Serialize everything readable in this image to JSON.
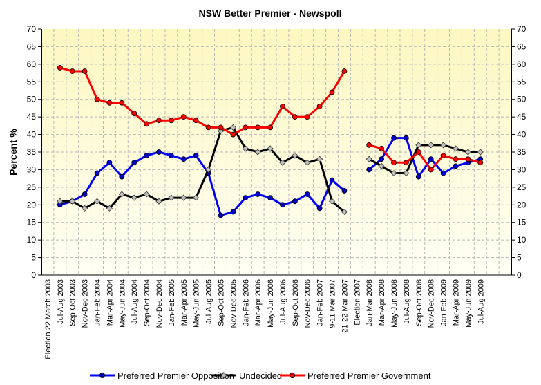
{
  "chart_data": {
    "type": "line",
    "title": "NSW Better Premier - Newspoll",
    "ylabel": "Percent %",
    "xlabel": "",
    "ylim": [
      0,
      70
    ],
    "yticks": [
      "0",
      "5",
      "10",
      "15",
      "20",
      "25",
      "30",
      "35",
      "40",
      "45",
      "50",
      "55",
      "60",
      "65",
      "70"
    ],
    "grid": true,
    "legend_position": "bottom",
    "categories": [
      "Election 22 March 2003",
      "Jul-Aug 2003",
      "Sep-Oct 2003",
      "Nov-Dec 2003",
      "Jan-Feb 2004",
      "Mar-Apr 2004",
      "May-Jun 2004",
      "Jul-Aug 2004",
      "Sep-Oct 2004",
      "Nov-Dec 2004",
      "Jan-Feb 2005",
      "Mar-Apr 2005",
      "May-Jun 2005",
      "Jul-Aug 2005",
      "Sep-Oct 2005",
      "Nov-Dec 2005",
      "Jan-Feb 2006",
      "Mar-Apr 2006",
      "May-Jun 2006",
      "Jul-Aug 2006",
      "Sep-Oct 2006",
      "Nov-Dec 2006",
      "Jan-Feb 2007",
      "9-11 Mar 2007",
      "21-22 Mar 2007",
      "Election 2007",
      "Jan-Mar 2008",
      "Mar-Apr 2008",
      "May-Jun 2008",
      "Jul-Aug 2008",
      "Sep-Oct 2008",
      "Nov-Dec 2008",
      "Jan-Feb 2009",
      "Mar-Apr 2009",
      "May-Jun 2009",
      "Jul-Aug 2009",
      "",
      ""
    ],
    "series": [
      {
        "name": "Preferred Premier Opposition",
        "color": "#0000ff",
        "marker": "#0000cc",
        "values": [
          null,
          20,
          21,
          23,
          29,
          32,
          28,
          32,
          34,
          35,
          34,
          33,
          34,
          29,
          17,
          18,
          22,
          23,
          22,
          20,
          21,
          23,
          19,
          27,
          24,
          null,
          30,
          33,
          39,
          39,
          28,
          33,
          29,
          31,
          32,
          33,
          null,
          null
        ]
      },
      {
        "name": "Undecided",
        "color": "#000000",
        "marker": "#c0c0c0",
        "values": [
          null,
          21,
          21,
          19,
          21,
          19,
          23,
          22,
          23,
          21,
          22,
          22,
          22,
          30,
          41,
          42,
          36,
          35,
          36,
          32,
          34,
          32,
          33,
          21,
          18,
          null,
          33,
          31,
          29,
          29,
          37,
          37,
          37,
          36,
          35,
          35,
          null,
          null
        ]
      },
      {
        "name": "Preferred Premier Government",
        "color": "#ff0000",
        "marker": "#ff0000",
        "values": [
          null,
          59,
          58,
          58,
          50,
          49,
          49,
          46,
          43,
          44,
          44,
          45,
          44,
          42,
          42,
          40,
          42,
          42,
          42,
          48,
          45,
          45,
          48,
          52,
          58,
          null,
          37,
          36,
          32,
          32,
          35,
          30,
          34,
          33,
          33,
          32,
          null,
          null
        ]
      }
    ]
  }
}
